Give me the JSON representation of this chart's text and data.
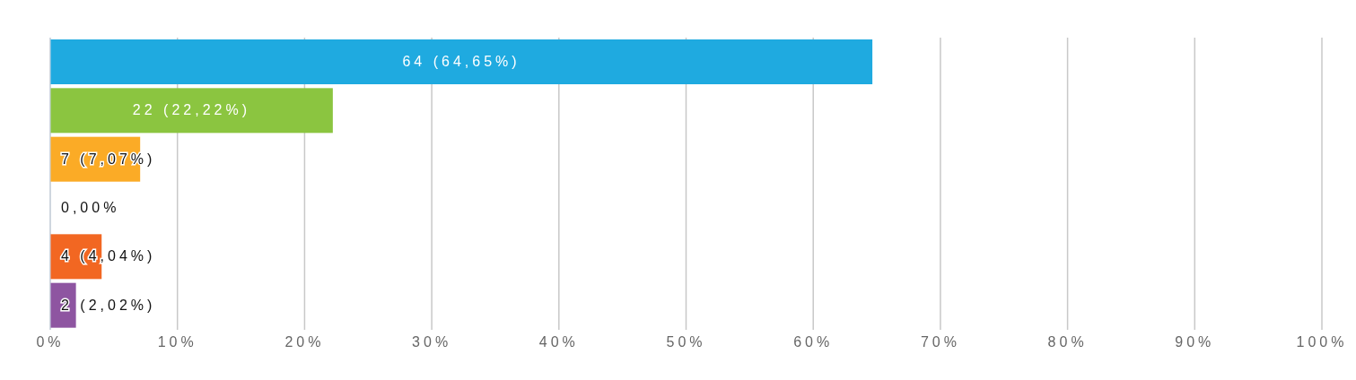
{
  "chart_data": {
    "type": "bar",
    "orientation": "horizontal",
    "categories": [
      null,
      null,
      null,
      null,
      null,
      null
    ],
    "values": [
      64.65,
      22.22,
      7.07,
      0,
      4.04,
      2.02
    ],
    "colors": [
      "#1faae0",
      "#8bc540",
      "#fbab26",
      "#c8d6e8",
      "#f26722",
      "#8e55a1"
    ],
    "value_labels": [
      "64 (64,65%)",
      "22 (22,22%)",
      "7 (7,07%)",
      "0,00%",
      "4 (4,04%)",
      "2 (2,02%)"
    ],
    "xlim": [
      0,
      100
    ],
    "xticks": [
      {
        "value": 0,
        "label": "0%"
      },
      {
        "value": 10,
        "label": "10%"
      },
      {
        "value": 20,
        "label": "20%"
      },
      {
        "value": 30,
        "label": "30%"
      },
      {
        "value": 40,
        "label": "40%"
      },
      {
        "value": 50,
        "label": "50%"
      },
      {
        "value": 60,
        "label": "60%"
      },
      {
        "value": 70,
        "label": "70%"
      },
      {
        "value": 80,
        "label": "80%"
      },
      {
        "value": 90,
        "label": "90%"
      },
      {
        "value": 100,
        "label": "100%"
      }
    ],
    "grid": "x",
    "legend": false
  }
}
